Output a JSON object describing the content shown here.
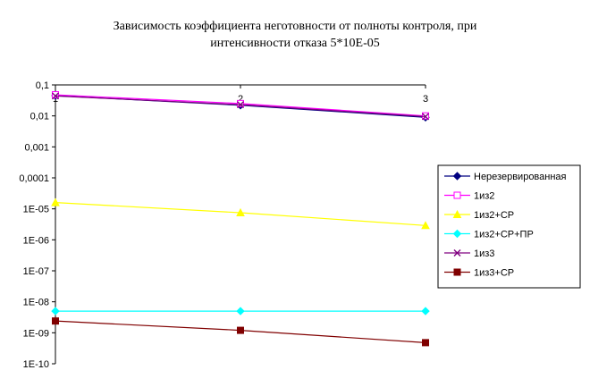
{
  "chart_data": {
    "type": "line",
    "title_lines": [
      "Зависимость коэффициента неготовности от полноты контроля, при",
      "интенсивности отказа 5*10E-05"
    ],
    "xlabel": "",
    "ylabel": "",
    "x": [
      "1",
      "2",
      "3"
    ],
    "y_scale": "log",
    "ylim": [
      1e-10,
      0.1
    ],
    "y_tick_labels": [
      "0,1",
      "0,01",
      "0,001",
      "0,0001",
      "1E-05",
      "1E-06",
      "1E-07",
      "1E-08",
      "1E-09",
      "1E-10"
    ],
    "legend_position": "right",
    "grid": false,
    "series": [
      {
        "name": "Нерезервированная",
        "color": "#000080",
        "marker": "diamond",
        "values": [
          0.045,
          0.022,
          0.009
        ]
      },
      {
        "name": "1из2",
        "color": "#ff00ff",
        "marker": "square-open",
        "values": [
          0.048,
          0.025,
          0.01
        ]
      },
      {
        "name": "1из2+СР",
        "color": "#ffff00",
        "marker": "triangle",
        "values": [
          1.6e-05,
          7.5e-06,
          2.9e-06
        ]
      },
      {
        "name": "1из2+СР+ПР",
        "color": "#00ffff",
        "marker": "diamond",
        "values": [
          5e-09,
          5e-09,
          5e-09
        ]
      },
      {
        "name": "1из3",
        "color": "#800080",
        "marker": "x",
        "values": [
          0.044,
          0.023,
          0.0095
        ]
      },
      {
        "name": "1из3+СР",
        "color": "#800000",
        "marker": "square",
        "values": [
          2.4e-09,
          1.2e-09,
          4.8e-10
        ]
      }
    ]
  }
}
